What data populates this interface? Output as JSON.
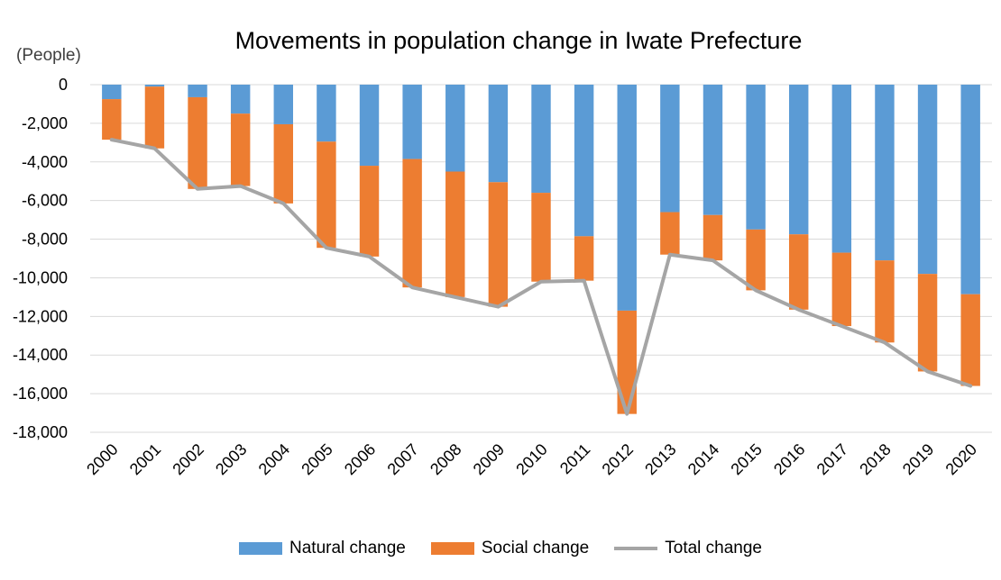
{
  "chart_data": {
    "type": "bar",
    "stacked": true,
    "title": "Movements in population change in Iwate Prefecture",
    "ylabel": "(People)",
    "xlabel": "",
    "ylim": [
      -18000,
      0
    ],
    "yticks": [
      0,
      -2000,
      -4000,
      -6000,
      -8000,
      -10000,
      -12000,
      -14000,
      -16000,
      -18000
    ],
    "ytick_labels": [
      "0",
      "-2,000",
      "-4,000",
      "-6,000",
      "-8,000",
      "-10,000",
      "-12,000",
      "-14,000",
      "-16,000",
      "-18,000"
    ],
    "grid": true,
    "legend_position": "bottom",
    "categories": [
      "2000",
      "2001",
      "2002",
      "2003",
      "2004",
      "2005",
      "2006",
      "2007",
      "2008",
      "2009",
      "2010",
      "2011",
      "2012",
      "2013",
      "2014",
      "2015",
      "2016",
      "2017",
      "2018",
      "2019",
      "2020"
    ],
    "series": [
      {
        "name": "Natural change",
        "kind": "bar",
        "color": "#5B9BD5",
        "values": [
          -750,
          -100,
          -650,
          -1500,
          -2050,
          -2950,
          -4200,
          -3850,
          -4500,
          -5050,
          -5600,
          -7850,
          -11700,
          -6600,
          -6750,
          -7500,
          -7750,
          -8700,
          -9100,
          -9800,
          -10850
        ]
      },
      {
        "name": "Social change",
        "kind": "bar",
        "color": "#ED7D31",
        "values": [
          -2100,
          -3200,
          -4750,
          -3750,
          -4100,
          -5500,
          -4700,
          -6650,
          -6500,
          -6450,
          -4600,
          -2300,
          -5350,
          -2200,
          -2350,
          -3150,
          -3900,
          -3800,
          -4250,
          -5050,
          -4750
        ]
      },
      {
        "name": "Total change",
        "kind": "line",
        "color": "#A5A5A5",
        "values": [
          -2850,
          -3300,
          -5400,
          -5250,
          -6150,
          -8450,
          -8900,
          -10500,
          -11000,
          -11500,
          -10200,
          -10150,
          -17050,
          -8800,
          -9100,
          -10650,
          -11650,
          -12500,
          -13350,
          -14850,
          -15600
        ]
      }
    ]
  }
}
